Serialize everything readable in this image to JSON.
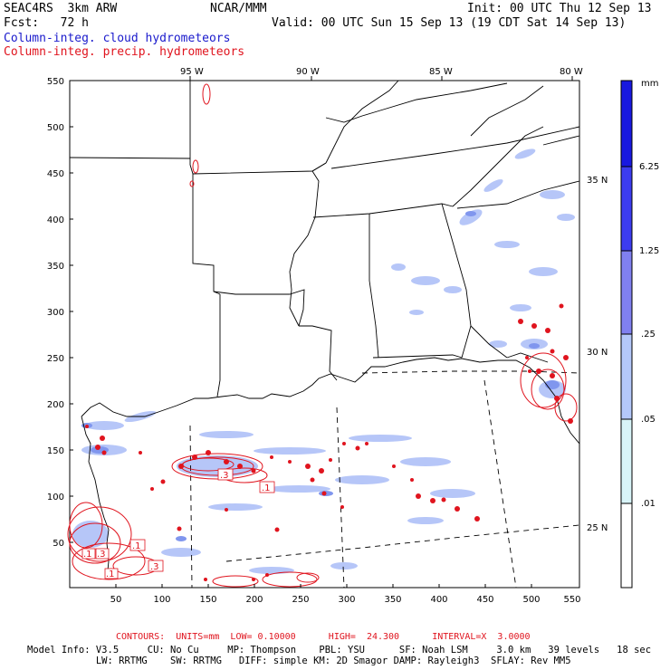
{
  "header": {
    "model": "SEAC4RS  3km ARW",
    "center": "NCAR/MMM",
    "init": "Init: 00 UTC Thu 12 Sep 13",
    "fcst": "Fcst:   72 h",
    "valid": "Valid: 00 UTC Sun 15 Sep 13 (19 CDT Sat 14 Sep 13)",
    "field1": "Column-integ. cloud hydrometeors",
    "field2": "Column-integ. precip. hydrometeors"
  },
  "map": {
    "lon_labels": [
      "95 W",
      "90 W",
      "85 W",
      "80 W"
    ],
    "lat_labels": [
      "35 N",
      "30 N",
      "25 N"
    ],
    "y_ticks": [
      "550",
      "500",
      "450",
      "400",
      "350",
      "300",
      "250",
      "200",
      "150",
      "100",
      "50"
    ],
    "x_ticks": [
      "50",
      "100",
      "150",
      "200",
      "250",
      "300",
      "350",
      "400",
      "450",
      "500",
      "550"
    ],
    "contour_labels": [
      ".3",
      ".1",
      ".1",
      ".1",
      ".3",
      ".3",
      ".1"
    ],
    "colors": {
      "precip": "#e0141e",
      "cloud_light": "#bfd0fb",
      "cloud_mid": "#8ca4f0",
      "cloud_dark": "#3c3cf0"
    }
  },
  "colorbar": {
    "unit": "mm",
    "labels": [
      "6.25",
      "1.25",
      ".25",
      ".05",
      ".01"
    ],
    "colors": [
      "#1818e0",
      "#3c3cf0",
      "#8080f0",
      "#b4c8fa",
      "#d8f4f8",
      "#ffffff"
    ]
  },
  "footer": {
    "contours": "CONTOURS:  UNITS=mm  LOW= 0.10000      HIGH=  24.300      INTERVAL=X  3.0000",
    "line1": "Model Info: V3.5     CU: No Cu     MP: Thompson    PBL: YSU      SF: Noah LSM     3.0 km   39 levels   18 sec",
    "line2": "            LW: RRTMG    SW: RRTMG   DIFF: simple KM: 2D Smagor DAMP: Rayleigh3  SFLAY: Rev MM5"
  }
}
